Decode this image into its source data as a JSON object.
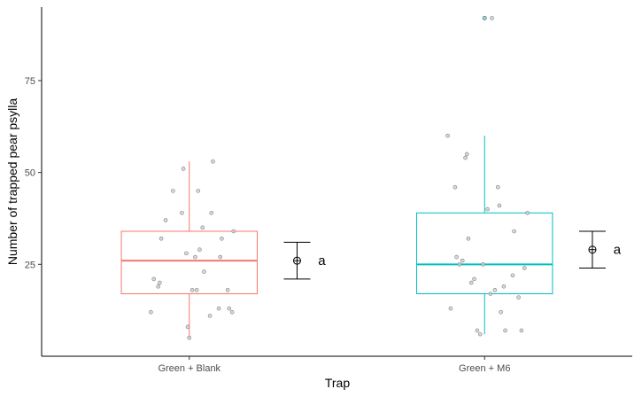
{
  "chart_data": {
    "type": "boxplot",
    "xlabel": "Trap",
    "ylabel": "Number of trapped pear psylla",
    "categories": [
      "Green + Blank",
      "Green + M6"
    ],
    "y_ticks": [
      25,
      50,
      75
    ],
    "ylim": [
      0,
      95
    ],
    "grid": false,
    "legend": "none",
    "series": [
      {
        "color": "#f8766d",
        "box": {
          "lower_whisker": 5,
          "q1": 17,
          "median": 26,
          "q3": 34,
          "upper_whisker": 53
        },
        "outliers": [],
        "mean": 26,
        "ci": [
          21,
          31
        ],
        "letter": "a",
        "points": [
          {
            "jitter": -0.26,
            "y": 12
          },
          {
            "jitter": -0.24,
            "y": 21
          },
          {
            "jitter": -0.21,
            "y": 19
          },
          {
            "jitter": -0.2,
            "y": 20
          },
          {
            "jitter": -0.19,
            "y": 32
          },
          {
            "jitter": -0.16,
            "y": 37
          },
          {
            "jitter": -0.11,
            "y": 45
          },
          {
            "jitter": -0.05,
            "y": 39
          },
          {
            "jitter": -0.04,
            "y": 51
          },
          {
            "jitter": -0.02,
            "y": 28
          },
          {
            "jitter": -0.01,
            "y": 8
          },
          {
            "jitter": 0.0,
            "y": 5
          },
          {
            "jitter": 0.02,
            "y": 18
          },
          {
            "jitter": 0.04,
            "y": 27
          },
          {
            "jitter": 0.05,
            "y": 18
          },
          {
            "jitter": 0.06,
            "y": 45
          },
          {
            "jitter": 0.07,
            "y": 29
          },
          {
            "jitter": 0.09,
            "y": 35
          },
          {
            "jitter": 0.1,
            "y": 23
          },
          {
            "jitter": 0.14,
            "y": 11
          },
          {
            "jitter": 0.15,
            "y": 39
          },
          {
            "jitter": 0.16,
            "y": 53
          },
          {
            "jitter": 0.2,
            "y": 13
          },
          {
            "jitter": 0.21,
            "y": 27
          },
          {
            "jitter": 0.22,
            "y": 32
          },
          {
            "jitter": 0.26,
            "y": 18
          },
          {
            "jitter": 0.27,
            "y": 13
          },
          {
            "jitter": 0.29,
            "y": 12
          },
          {
            "jitter": 0.3,
            "y": 34
          }
        ]
      },
      {
        "color": "#00bfc4",
        "box": {
          "lower_whisker": 6,
          "q1": 17,
          "median": 25,
          "q3": 39,
          "upper_whisker": 60
        },
        "outliers": [
          92
        ],
        "mean": 29,
        "ci": [
          24,
          34
        ],
        "letter": "a",
        "points": [
          {
            "jitter": -0.25,
            "y": 60
          },
          {
            "jitter": -0.2,
            "y": 46
          },
          {
            "jitter": -0.19,
            "y": 27
          },
          {
            "jitter": -0.17,
            "y": 25
          },
          {
            "jitter": -0.15,
            "y": 26
          },
          {
            "jitter": -0.13,
            "y": 54
          },
          {
            "jitter": -0.12,
            "y": 55
          },
          {
            "jitter": -0.11,
            "y": 32
          },
          {
            "jitter": -0.09,
            "y": 20
          },
          {
            "jitter": -0.07,
            "y": 21
          },
          {
            "jitter": -0.05,
            "y": 7
          },
          {
            "jitter": -0.03,
            "y": 6
          },
          {
            "jitter": -0.01,
            "y": 25
          },
          {
            "jitter": 0.0,
            "y": 92
          },
          {
            "jitter": 0.04,
            "y": 17
          },
          {
            "jitter": 0.05,
            "y": 92
          },
          {
            "jitter": 0.07,
            "y": 18
          },
          {
            "jitter": 0.09,
            "y": 46
          },
          {
            "jitter": 0.1,
            "y": 41
          },
          {
            "jitter": 0.11,
            "y": 12
          },
          {
            "jitter": 0.14,
            "y": 7
          },
          {
            "jitter": 0.19,
            "y": 22
          },
          {
            "jitter": 0.2,
            "y": 34
          },
          {
            "jitter": 0.23,
            "y": 16
          },
          {
            "jitter": 0.25,
            "y": 7
          },
          {
            "jitter": 0.27,
            "y": 24
          },
          {
            "jitter": 0.29,
            "y": 39
          },
          {
            "jitter": 0.02,
            "y": 40
          },
          {
            "jitter": 0.13,
            "y": 19
          },
          {
            "jitter": -0.23,
            "y": 13
          }
        ]
      }
    ]
  }
}
